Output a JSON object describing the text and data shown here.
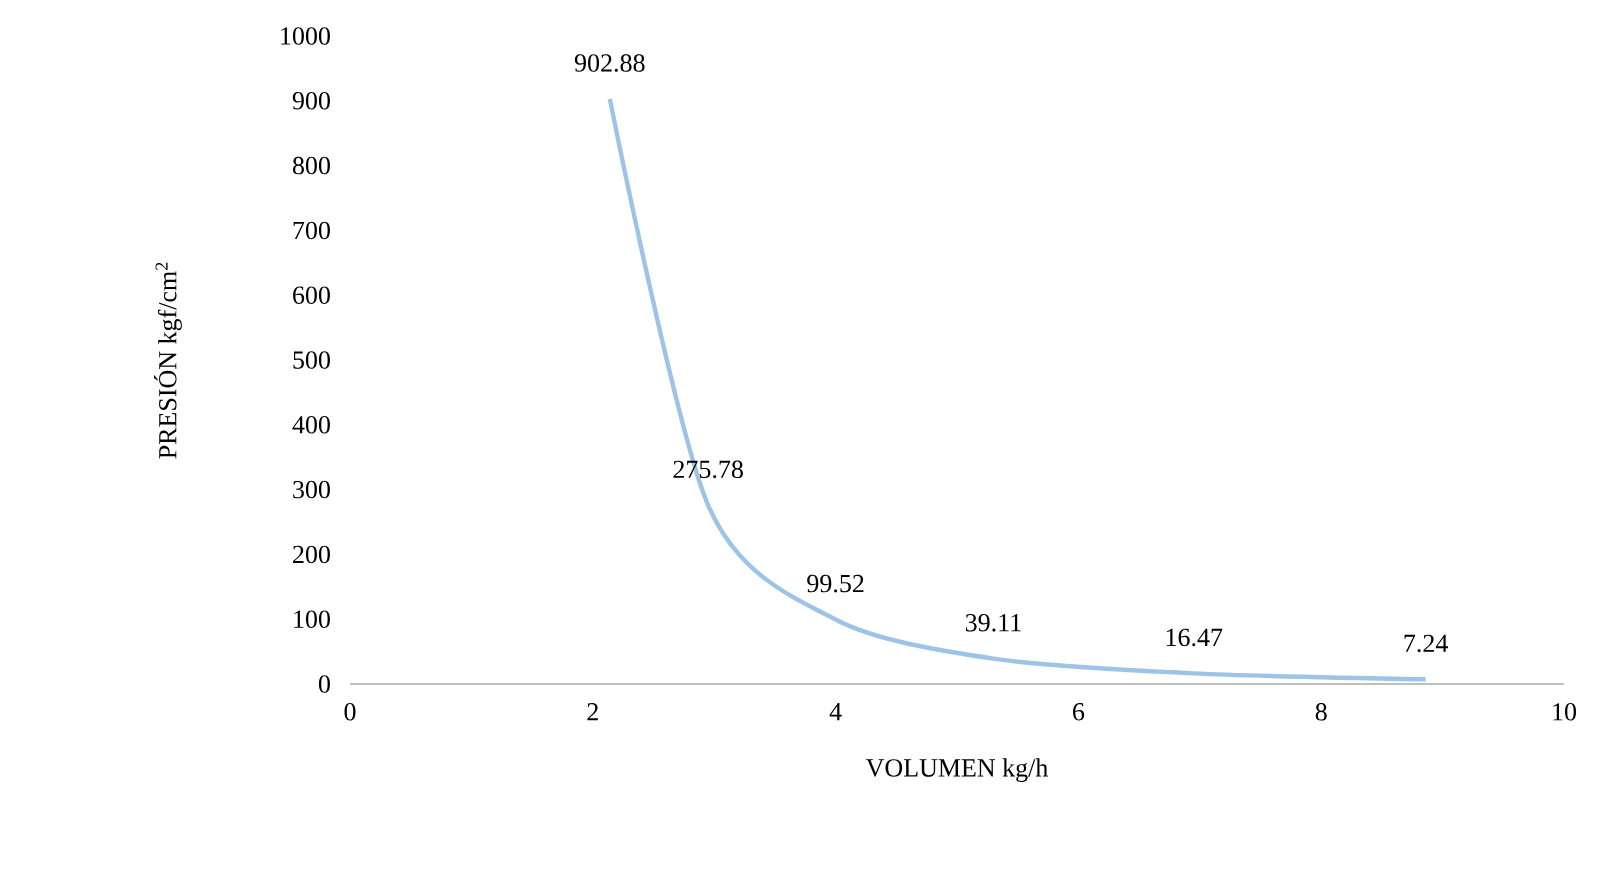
{
  "chart_data": {
    "type": "line",
    "xlabel": "VOLUMEN kg/h",
    "ylabel": "PRESIÓN kgf/cm$^{2}$",
    "x": [
      2.14,
      2.95,
      4.0,
      5.3,
      6.95,
      8.86
    ],
    "series": [
      {
        "color": "#9dc3e6",
        "values": [
          902.88,
          275.78,
          99.52,
          39.11,
          16.47,
          7.24
        ]
      }
    ],
    "xlim": [
      0,
      10
    ],
    "xticks": [
      0,
      2,
      4,
      6,
      8,
      10
    ],
    "ylim": [
      0,
      1000
    ],
    "yticks": [
      0,
      100,
      200,
      300,
      400,
      500,
      600,
      700,
      800,
      900,
      1000
    ],
    "data_labels": true,
    "grid": false,
    "marker": "none",
    "line_style": "solid"
  }
}
